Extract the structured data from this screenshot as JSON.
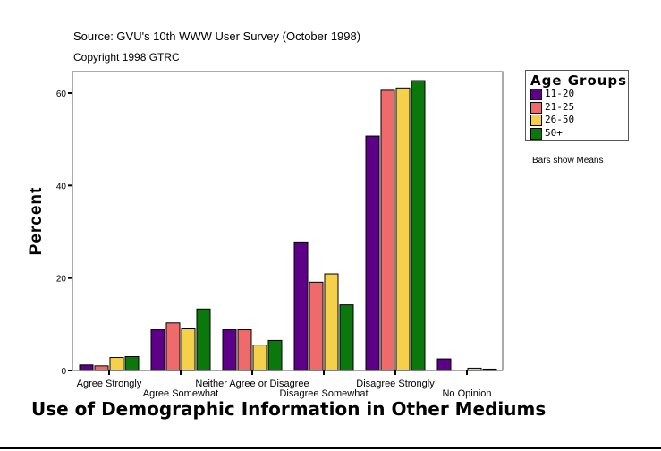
{
  "chart_data": {
    "type": "bar",
    "source": "Source: GVU's 10th WWW User Survey (October 1998)",
    "copyright": "Copyright 1998 GTRC",
    "title": "Use of Demographic Information in Other Mediums",
    "xlabel": "",
    "ylabel": "Percent",
    "ylim": [
      0,
      65
    ],
    "yticks": [
      0,
      20,
      40,
      60
    ],
    "grid": false,
    "legend": {
      "title": "Age Groups",
      "placement": "right"
    },
    "note": "Bars show Means",
    "categories": [
      "Agree Strongly",
      "Agree Somewhat",
      "Neither Agree or Disagree",
      "Disagree Somewhat",
      "Disagree Strongly",
      "No Opinion"
    ],
    "series": [
      {
        "name": "11-20",
        "color": "#5e0087",
        "values": [
          1.2,
          8.8,
          8.8,
          27.8,
          50.7,
          2.5
        ]
      },
      {
        "name": "21-25",
        "color": "#ef6b6b",
        "values": [
          1.0,
          10.3,
          8.8,
          19.1,
          60.6,
          0
        ]
      },
      {
        "name": "26-50",
        "color": "#f5d04a",
        "values": [
          2.8,
          9.0,
          5.5,
          20.9,
          61.1,
          0.5
        ]
      },
      {
        "name": "50+",
        "color": "#0a780a",
        "values": [
          3.0,
          13.3,
          6.5,
          14.2,
          62.7,
          0.3
        ]
      }
    ]
  }
}
